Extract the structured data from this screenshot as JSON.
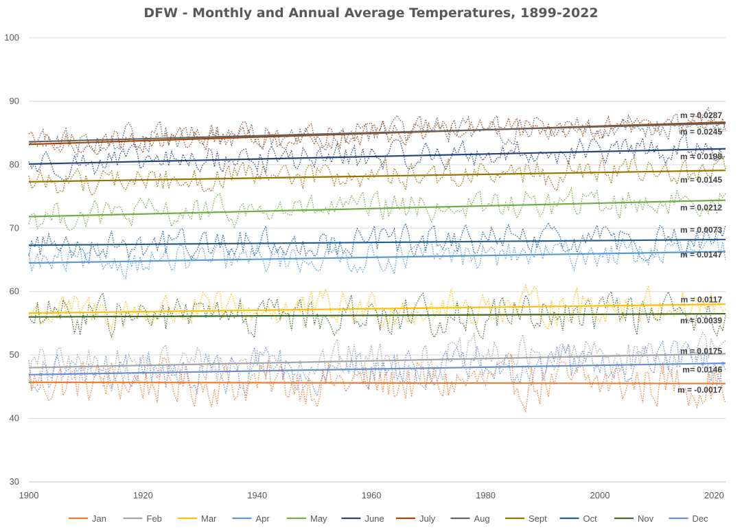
{
  "chart_data": {
    "type": "line",
    "title": "DFW - Monthly and Annual Average Temperatures, 1899-2022",
    "xlabel": "",
    "ylabel": "",
    "xlim": [
      1900,
      2022
    ],
    "ylim": [
      30,
      100
    ],
    "x_ticks": [
      1900,
      1920,
      1940,
      1960,
      1980,
      2000,
      2020
    ],
    "y_ticks": [
      30,
      40,
      50,
      60,
      70,
      80,
      90,
      100
    ],
    "grid": true,
    "legend_position": "bottom",
    "series": [
      {
        "name": "Jan",
        "color": "#ED7D31",
        "trend_start": 45.7,
        "trend_end": 45.5
      },
      {
        "name": "Feb",
        "color": "#A5A5A5",
        "trend_start": 48.0,
        "trend_end": 50.2
      },
      {
        "name": "Mar",
        "color": "#FFC000",
        "trend_start": 56.6,
        "trend_end": 58.0
      },
      {
        "name": "Apr",
        "color": "#5B9BD5",
        "trend_start": 64.5,
        "trend_end": 66.3
      },
      {
        "name": "May",
        "color": "#70AD47",
        "trend_start": 71.8,
        "trend_end": 74.4
      },
      {
        "name": "June",
        "color": "#264478",
        "trend_start": 80.1,
        "trend_end": 82.5
      },
      {
        "name": "July",
        "color": "#9E480E",
        "trend_start": 83.2,
        "trend_end": 86.7
      },
      {
        "name": "Aug",
        "color": "#636363",
        "trend_start": 83.6,
        "trend_end": 86.5
      },
      {
        "name": "Sept",
        "color": "#997300",
        "trend_start": 77.3,
        "trend_end": 79.1
      },
      {
        "name": "Oct",
        "color": "#255E91",
        "trend_start": 67.3,
        "trend_end": 68.2
      },
      {
        "name": "Nov",
        "color": "#43682B",
        "trend_start": 56.0,
        "trend_end": 56.5
      },
      {
        "name": "Dec",
        "color": "#698ED0",
        "trend_start": 46.9,
        "trend_end": 48.7
      }
    ],
    "slope_annotations": [
      {
        "text": "m = 0.0287",
        "y": 87.8
      },
      {
        "text": "m = 0.0245",
        "y": 85.2
      },
      {
        "text": "m = 0.0198",
        "y": 81.3
      },
      {
        "text": "m = 0.0145",
        "y": 77.6
      },
      {
        "text": "m = 0.0212",
        "y": 73.2
      },
      {
        "text": "m = 0.0073",
        "y": 69.7
      },
      {
        "text": "m = 0.0147",
        "y": 65.8
      },
      {
        "text": "m = 0.0117",
        "y": 58.7
      },
      {
        "text": "m = 0.0039",
        "y": 55.4
      },
      {
        "text": "m = 0.0175",
        "y": 50.6
      },
      {
        "text": "m= 0.0146",
        "y": 47.7
      },
      {
        "text": "m = -0.0017",
        "y": 44.5
      }
    ]
  }
}
